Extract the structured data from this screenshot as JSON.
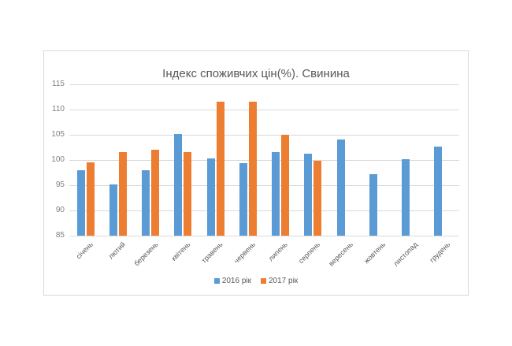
{
  "chart_data": {
    "type": "bar",
    "title": "Індекс споживчих цін(%). Свинина",
    "xlabel": "",
    "ylabel": "",
    "ylim": [
      85,
      115
    ],
    "yticks": [
      85,
      90,
      95,
      100,
      105,
      110,
      115
    ],
    "grid": true,
    "legend_position": "bottom",
    "categories": [
      "січень",
      "лютий",
      "березень",
      "квітень",
      "травень",
      "червень",
      "липень",
      "серпень",
      "вересень",
      "жовтень",
      "листопад",
      "грудень"
    ],
    "series": [
      {
        "name": "2016 рік",
        "color": "#5b9bd5",
        "values": [
          98.0,
          95.2,
          97.9,
          105.2,
          100.3,
          99.4,
          101.6,
          101.3,
          104.0,
          97.2,
          100.2,
          102.7
        ]
      },
      {
        "name": "2017 рік",
        "color": "#ed7d31",
        "values": [
          99.6,
          101.6,
          102.0,
          101.6,
          111.5,
          111.6,
          105.0,
          99.9,
          null,
          null,
          null,
          null
        ]
      }
    ]
  }
}
